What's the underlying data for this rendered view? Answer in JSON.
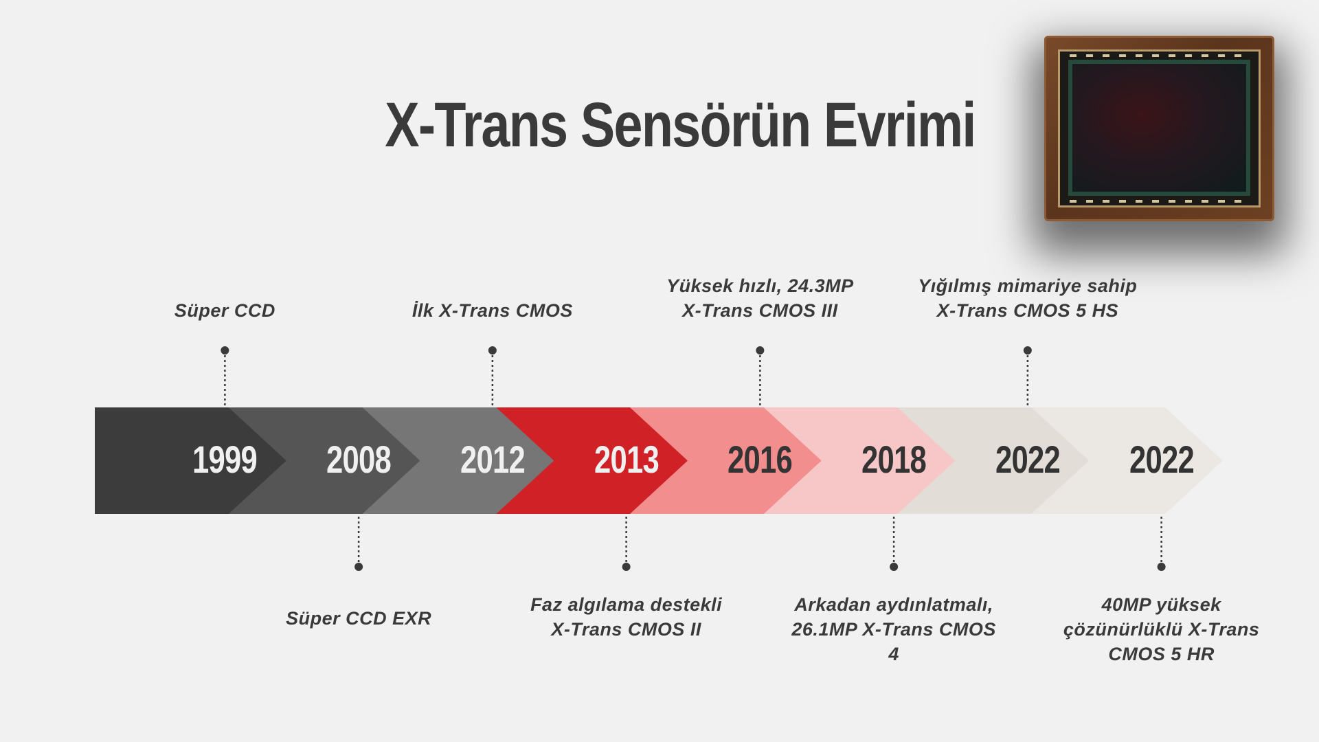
{
  "title": "X-Trans Sensörün Evrimi",
  "colors": {
    "background": "#f1f1f1",
    "segments": [
      "#3c3c3c",
      "#555555",
      "#767676",
      "#d02226",
      "#f38e8e",
      "#f7c7c7",
      "#e3ddd7",
      "#ebe8e3"
    ],
    "year_text_light": "#f0f0f0",
    "year_text_dark": "#333333",
    "connector": "#3a3a3a"
  },
  "image": {
    "name": "image-sensor-chip"
  },
  "milestones": [
    {
      "year": "1999",
      "position": "top",
      "lines": [
        "Süper CCD"
      ]
    },
    {
      "year": "2008",
      "position": "bottom",
      "lines": [
        "Süper CCD EXR"
      ]
    },
    {
      "year": "2012",
      "position": "top",
      "lines": [
        "İlk X-Trans CMOS"
      ]
    },
    {
      "year": "2013",
      "position": "bottom",
      "lines": [
        "Faz algılama destekli",
        "X-Trans CMOS II"
      ]
    },
    {
      "year": "2016",
      "position": "top",
      "lines": [
        "Yüksek hızlı, 24.3MP",
        "X-Trans CMOS III"
      ]
    },
    {
      "year": "2018",
      "position": "bottom",
      "lines": [
        "Arkadan aydınlatmalı,",
        "26.1MP X-Trans CMOS",
        "4"
      ]
    },
    {
      "year": "2022",
      "position": "top",
      "lines": [
        "Yığılmış mimariye sahip",
        "X-Trans CMOS 5 HS"
      ]
    },
    {
      "year": "2022",
      "position": "bottom",
      "lines": [
        "40MP yüksek",
        "çözünürlüklü X-Trans",
        "CMOS 5 HR"
      ]
    }
  ]
}
